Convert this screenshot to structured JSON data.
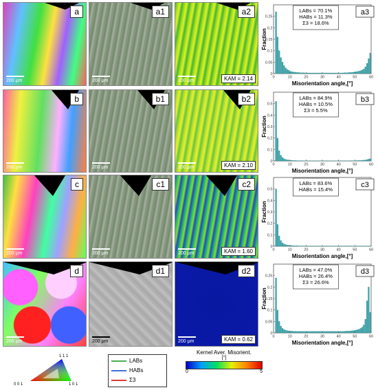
{
  "rows": [
    {
      "ipf_label": "a",
      "band_label": "a1",
      "kam_label": "a2",
      "chart_label": "a3",
      "scale_text": "200 μm",
      "kam_value": "KAM = 2.14",
      "stats": [
        "LABs = 70.1%",
        "HABs = 11.3%",
        "Σ3 = 18.6%"
      ]
    },
    {
      "ipf_label": "b",
      "band_label": "b1",
      "kam_label": "b2",
      "chart_label": "b3",
      "scale_text": "200 μm",
      "kam_value": "KAM = 2.10",
      "stats": [
        "LABs = 84.9%",
        "HABs = 10.5%",
        "Σ3 = 5.5%"
      ]
    },
    {
      "ipf_label": "c",
      "band_label": "c1",
      "kam_label": "c2",
      "chart_label": "c3",
      "scale_text": "200 μm",
      "kam_value": "KAM = 1.60",
      "stats": [
        "LABs = 83.6%",
        "HABs = 15.4%"
      ]
    },
    {
      "ipf_label": "d",
      "band_label": "d1",
      "kam_label": "d2",
      "chart_label": "d3",
      "scale_text": "200 μm",
      "kam_value": "KAM = 0.62",
      "stats": [
        "LABs = 47.0%",
        "HABs = 26.4%",
        "Σ3 = 26.6%"
      ]
    }
  ],
  "legend": {
    "items": [
      {
        "label": "LABs",
        "color": "#4caf50"
      },
      {
        "label": "HABs",
        "color": "#3f6fd8"
      },
      {
        "label": "Σ3",
        "color": "#e03a2f"
      }
    ],
    "kam_title": "Kernel Aver. Misorient.",
    "kam_unit": "[°]",
    "kam_min": "0",
    "kam_max": "5",
    "ipf_corners": [
      "0 0 1",
      "1 0 1",
      "1 1 1"
    ]
  },
  "chart_data": [
    {
      "type": "bar",
      "ylabel": "Fraction",
      "xlabel": "Misorientation angle,[°]",
      "xlim": [
        0,
        60
      ],
      "ylim": [
        0,
        0.3
      ],
      "yticks": [
        0,
        0.05,
        0.1,
        0.15,
        0.2,
        0.25
      ],
      "xticks": [
        0,
        10,
        20,
        30,
        40,
        50,
        60
      ],
      "x": [
        2,
        3,
        4,
        5,
        6,
        7,
        8,
        9,
        10,
        11,
        12,
        13,
        14,
        15,
        16,
        17,
        18,
        19,
        20,
        21,
        22,
        23,
        24,
        25,
        26,
        27,
        28,
        29,
        30,
        31,
        32,
        33,
        34,
        35,
        36,
        37,
        38,
        39,
        40,
        41,
        42,
        43,
        44,
        45,
        46,
        47,
        48,
        49,
        50,
        51,
        52,
        53,
        54,
        55,
        56,
        57,
        58,
        59,
        60
      ],
      "values": [
        0.27,
        0.16,
        0.1,
        0.07,
        0.05,
        0.035,
        0.025,
        0.018,
        0.014,
        0.01,
        0.008,
        0.007,
        0.006,
        0.005,
        0.005,
        0.004,
        0.004,
        0.004,
        0.003,
        0.003,
        0.003,
        0.003,
        0.003,
        0.003,
        0.003,
        0.003,
        0.003,
        0.003,
        0.003,
        0.003,
        0.003,
        0.003,
        0.003,
        0.003,
        0.003,
        0.003,
        0.003,
        0.003,
        0.003,
        0.003,
        0.003,
        0.003,
        0.004,
        0.004,
        0.004,
        0.005,
        0.005,
        0.006,
        0.007,
        0.008,
        0.009,
        0.011,
        0.013,
        0.016,
        0.02,
        0.03,
        0.045,
        0.065,
        0.09
      ]
    },
    {
      "type": "bar",
      "ylabel": "Fraction",
      "xlabel": "Misorientation angle,[°]",
      "xlim": [
        0,
        60
      ],
      "ylim": [
        0,
        0.6
      ],
      "yticks": [
        0,
        0.1,
        0.2,
        0.3,
        0.4,
        0.5
      ],
      "xticks": [
        0,
        10,
        20,
        30,
        40,
        50,
        60
      ],
      "x": [
        2,
        3,
        4,
        5,
        6,
        7,
        8,
        9,
        10,
        11,
        12,
        13,
        14,
        15,
        16,
        17,
        18,
        19,
        20,
        21,
        22,
        23,
        24,
        25,
        26,
        27,
        28,
        29,
        30,
        31,
        32,
        33,
        34,
        35,
        36,
        37,
        38,
        39,
        40,
        41,
        42,
        43,
        44,
        45,
        46,
        47,
        48,
        49,
        50,
        51,
        52,
        53,
        54,
        55,
        56,
        57,
        58,
        59,
        60
      ],
      "values": [
        0.52,
        0.2,
        0.09,
        0.05,
        0.03,
        0.02,
        0.014,
        0.01,
        0.008,
        0.006,
        0.005,
        0.004,
        0.004,
        0.003,
        0.003,
        0.003,
        0.003,
        0.002,
        0.002,
        0.002,
        0.002,
        0.002,
        0.002,
        0.002,
        0.002,
        0.002,
        0.002,
        0.002,
        0.002,
        0.002,
        0.002,
        0.002,
        0.002,
        0.002,
        0.002,
        0.002,
        0.002,
        0.002,
        0.002,
        0.002,
        0.002,
        0.002,
        0.002,
        0.002,
        0.002,
        0.002,
        0.003,
        0.003,
        0.003,
        0.003,
        0.004,
        0.004,
        0.005,
        0.006,
        0.007,
        0.009,
        0.012,
        0.016,
        0.02
      ]
    },
    {
      "type": "bar",
      "ylabel": "Fraction",
      "xlabel": "Misorientation angle,[°]",
      "xlim": [
        0,
        60
      ],
      "ylim": [
        0,
        0.6
      ],
      "yticks": [
        0,
        0.1,
        0.2,
        0.3,
        0.4,
        0.5
      ],
      "xticks": [
        0,
        10,
        20,
        30,
        40,
        50,
        60
      ],
      "x": [
        2,
        3,
        4,
        5,
        6,
        7,
        8,
        9,
        10,
        11,
        12,
        13,
        14,
        15,
        16,
        17,
        18,
        19,
        20,
        21,
        22,
        23,
        24,
        25,
        26,
        27,
        28,
        29,
        30,
        31,
        32,
        33,
        34,
        35,
        36,
        37,
        38,
        39,
        40,
        41,
        42,
        43,
        44,
        45,
        46,
        47,
        48,
        49,
        50,
        51,
        52,
        53,
        54,
        55,
        56,
        57,
        58,
        59,
        60
      ],
      "values": [
        0.5,
        0.19,
        0.09,
        0.05,
        0.03,
        0.02,
        0.015,
        0.011,
        0.009,
        0.007,
        0.006,
        0.005,
        0.004,
        0.004,
        0.003,
        0.003,
        0.003,
        0.003,
        0.003,
        0.003,
        0.003,
        0.003,
        0.003,
        0.003,
        0.003,
        0.003,
        0.003,
        0.003,
        0.003,
        0.003,
        0.003,
        0.003,
        0.003,
        0.003,
        0.003,
        0.003,
        0.003,
        0.003,
        0.003,
        0.003,
        0.003,
        0.003,
        0.003,
        0.003,
        0.003,
        0.003,
        0.003,
        0.003,
        0.003,
        0.003,
        0.003,
        0.003,
        0.003,
        0.003,
        0.003,
        0.003,
        0.003,
        0.003,
        0.003
      ]
    },
    {
      "type": "bar",
      "ylabel": "Fraction",
      "xlabel": "Misorientation angle,[°]",
      "xlim": [
        0,
        60
      ],
      "ylim": [
        0,
        0.3
      ],
      "yticks": [
        0,
        0.05,
        0.1,
        0.15,
        0.2,
        0.25
      ],
      "xticks": [
        0,
        10,
        20,
        30,
        40,
        50,
        60
      ],
      "x": [
        2,
        3,
        4,
        5,
        6,
        7,
        8,
        9,
        10,
        11,
        12,
        13,
        14,
        15,
        16,
        17,
        18,
        19,
        20,
        21,
        22,
        23,
        24,
        25,
        26,
        27,
        28,
        29,
        30,
        31,
        32,
        33,
        34,
        35,
        36,
        37,
        38,
        39,
        40,
        41,
        42,
        43,
        44,
        45,
        46,
        47,
        48,
        49,
        50,
        51,
        52,
        53,
        54,
        55,
        56,
        57,
        58,
        59,
        60
      ],
      "values": [
        0.24,
        0.1,
        0.05,
        0.03,
        0.02,
        0.015,
        0.012,
        0.01,
        0.009,
        0.008,
        0.008,
        0.007,
        0.007,
        0.007,
        0.007,
        0.007,
        0.007,
        0.007,
        0.007,
        0.007,
        0.007,
        0.007,
        0.007,
        0.007,
        0.007,
        0.007,
        0.007,
        0.007,
        0.007,
        0.007,
        0.007,
        0.007,
        0.007,
        0.007,
        0.007,
        0.007,
        0.007,
        0.007,
        0.007,
        0.007,
        0.007,
        0.007,
        0.007,
        0.008,
        0.008,
        0.008,
        0.009,
        0.01,
        0.011,
        0.012,
        0.014,
        0.016,
        0.02,
        0.025,
        0.035,
        0.06,
        0.14,
        0.2,
        0.09
      ]
    }
  ]
}
